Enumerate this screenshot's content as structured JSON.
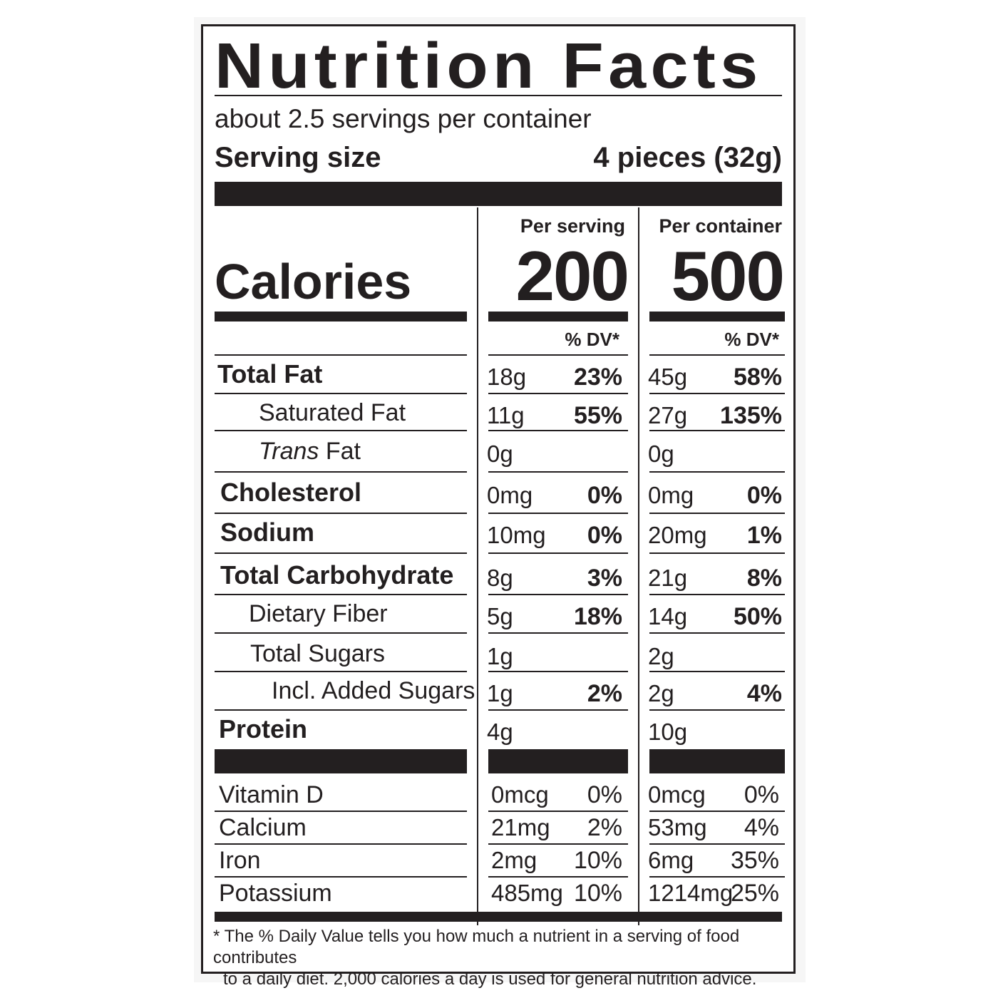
{
  "title": "Nutrition Facts",
  "servings_per_container": "about 2.5 servings per container",
  "serving_size_label": "Serving size",
  "serving_size_value": "4 pieces (32g)",
  "per_serving_label": "Per serving",
  "per_container_label": "Per container",
  "calories_label": "Calories",
  "calories_per_serving": "200",
  "calories_per_container": "500",
  "dv_header": "% DV*",
  "nutrients": [
    {
      "name": "Total Fat",
      "serving_amount": "18g",
      "serving_dv": "23%",
      "container_amount": "45g",
      "container_dv": "58%"
    },
    {
      "name": "Saturated Fat",
      "serving_amount": "11g",
      "serving_dv": "55%",
      "container_amount": "27g",
      "container_dv": "135%"
    },
    {
      "name_italic": "Trans",
      "name_rest": " Fat",
      "serving_amount": "0g",
      "serving_dv": "",
      "container_amount": "0g",
      "container_dv": ""
    },
    {
      "name": "Cholesterol",
      "serving_amount": "0mg",
      "serving_dv": "0%",
      "container_amount": "0mg",
      "container_dv": "0%"
    },
    {
      "name": "Sodium",
      "serving_amount": "10mg",
      "serving_dv": "0%",
      "container_amount": "20mg",
      "container_dv": "1%"
    },
    {
      "name": "Total Carbohydrate",
      "serving_amount": "8g",
      "serving_dv": "3%",
      "container_amount": "21g",
      "container_dv": "8%"
    },
    {
      "name": "Dietary Fiber",
      "serving_amount": "5g",
      "serving_dv": "18%",
      "container_amount": "14g",
      "container_dv": "50%"
    },
    {
      "name": "Total Sugars",
      "serving_amount": "1g",
      "serving_dv": "",
      "container_amount": "2g",
      "container_dv": ""
    },
    {
      "name": "Incl. Added Sugars",
      "serving_amount": "1g",
      "serving_dv": "2%",
      "container_amount": "2g",
      "container_dv": "4%"
    },
    {
      "name": "Protein",
      "serving_amount": "4g",
      "serving_dv": "",
      "container_amount": "10g",
      "container_dv": ""
    }
  ],
  "vitamins": [
    {
      "name": "Vitamin D",
      "serving_amount": "0mcg",
      "serving_dv": "0%",
      "container_amount": "0mcg",
      "container_dv": "0%"
    },
    {
      "name": "Calcium",
      "serving_amount": "21mg",
      "serving_dv": "2%",
      "container_amount": "53mg",
      "container_dv": "4%"
    },
    {
      "name": "Iron",
      "serving_amount": "2mg",
      "serving_dv": "10%",
      "container_amount": "6mg",
      "container_dv": "35%"
    },
    {
      "name": "Potassium",
      "serving_amount": "485mg",
      "serving_dv": "10%",
      "container_amount": "1214mg",
      "container_dv": "25%"
    }
  ],
  "footnote_line1": "* The % Daily Value tells you how much a nutrient in a serving of food contributes",
  "footnote_line2": "to a daily diet. 2,000 calories a day is used for general nutrition advice."
}
